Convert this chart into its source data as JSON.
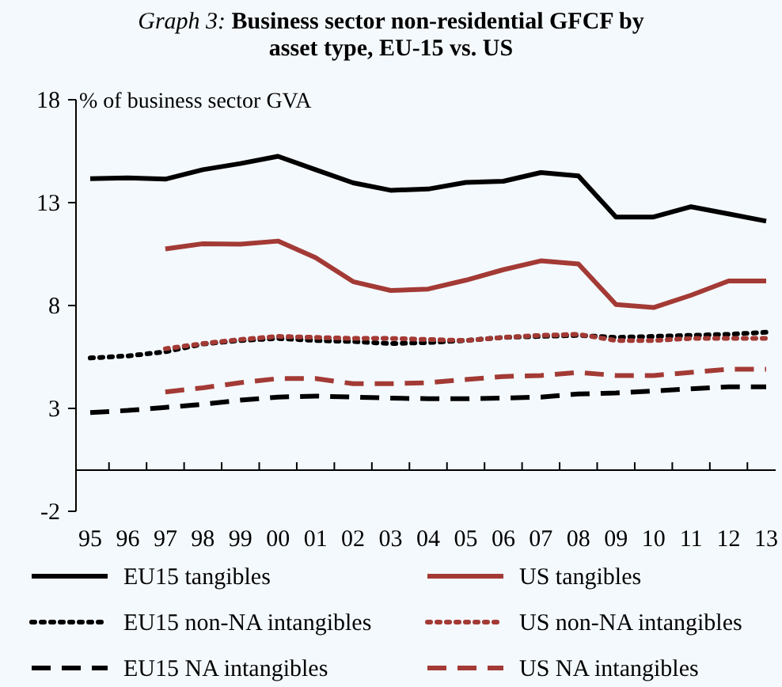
{
  "chart_data": {
    "type": "line",
    "title": "Graph 3: Business sector non-residential GFCF by asset type, EU-15 vs. US",
    "ylabel": "% of business sector GVA",
    "categories": [
      "95",
      "96",
      "97",
      "98",
      "99",
      "00",
      "01",
      "02",
      "03",
      "04",
      "05",
      "06",
      "07",
      "08",
      "09",
      "10",
      "11",
      "12",
      "13"
    ],
    "ylim": [
      -2,
      18
    ],
    "yticks": [
      -2,
      3,
      8,
      13,
      18
    ],
    "grid": false,
    "legend": "bottom",
    "marker": "none",
    "series": [
      {
        "name": "EU15 tangibles",
        "color": "#000000",
        "line_style": "solid",
        "values": [
          14.16,
          14.2,
          14.14,
          14.6,
          14.9,
          15.25,
          14.6,
          13.96,
          13.6,
          13.66,
          13.98,
          14.04,
          14.46,
          14.3,
          12.3,
          12.3,
          12.8,
          12.45,
          12.1
        ]
      },
      {
        "name": "US tangibles",
        "color": "#a33a35",
        "line_style": "solid",
        "values": [
          null,
          null,
          10.75,
          11.0,
          10.98,
          11.13,
          10.33,
          9.16,
          8.73,
          8.8,
          9.23,
          9.74,
          10.17,
          10.02,
          8.05,
          7.9,
          8.5,
          9.19,
          9.19
        ]
      },
      {
        "name": "EU15 non-NA intangibles",
        "color": "#000000",
        "line_style": "dotted",
        "values": [
          5.45,
          5.55,
          5.75,
          6.13,
          6.3,
          6.4,
          6.3,
          6.25,
          6.15,
          6.2,
          6.3,
          6.45,
          6.5,
          6.55,
          6.45,
          6.5,
          6.55,
          6.6,
          6.7
        ]
      },
      {
        "name": "US non-NA intangibles",
        "color": "#a33a35",
        "line_style": "dotted",
        "values": [
          null,
          null,
          5.9,
          6.15,
          6.35,
          6.5,
          6.45,
          6.4,
          6.4,
          6.35,
          6.3,
          6.45,
          6.55,
          6.6,
          6.3,
          6.3,
          6.4,
          6.4,
          6.4
        ]
      },
      {
        "name": "EU15 NA intangibles",
        "color": "#000000",
        "line_style": "dashed",
        "values": [
          2.8,
          2.9,
          3.05,
          3.2,
          3.4,
          3.55,
          3.6,
          3.55,
          3.5,
          3.47,
          3.47,
          3.5,
          3.55,
          3.7,
          3.75,
          3.85,
          3.95,
          4.05,
          4.05
        ]
      },
      {
        "name": "US NA intangibles",
        "color": "#a33a35",
        "line_style": "dashed",
        "values": [
          null,
          null,
          3.8,
          4.0,
          4.25,
          4.45,
          4.45,
          4.2,
          4.2,
          4.25,
          4.4,
          4.55,
          4.6,
          4.75,
          4.6,
          4.6,
          4.75,
          4.9,
          4.9
        ]
      }
    ]
  }
}
